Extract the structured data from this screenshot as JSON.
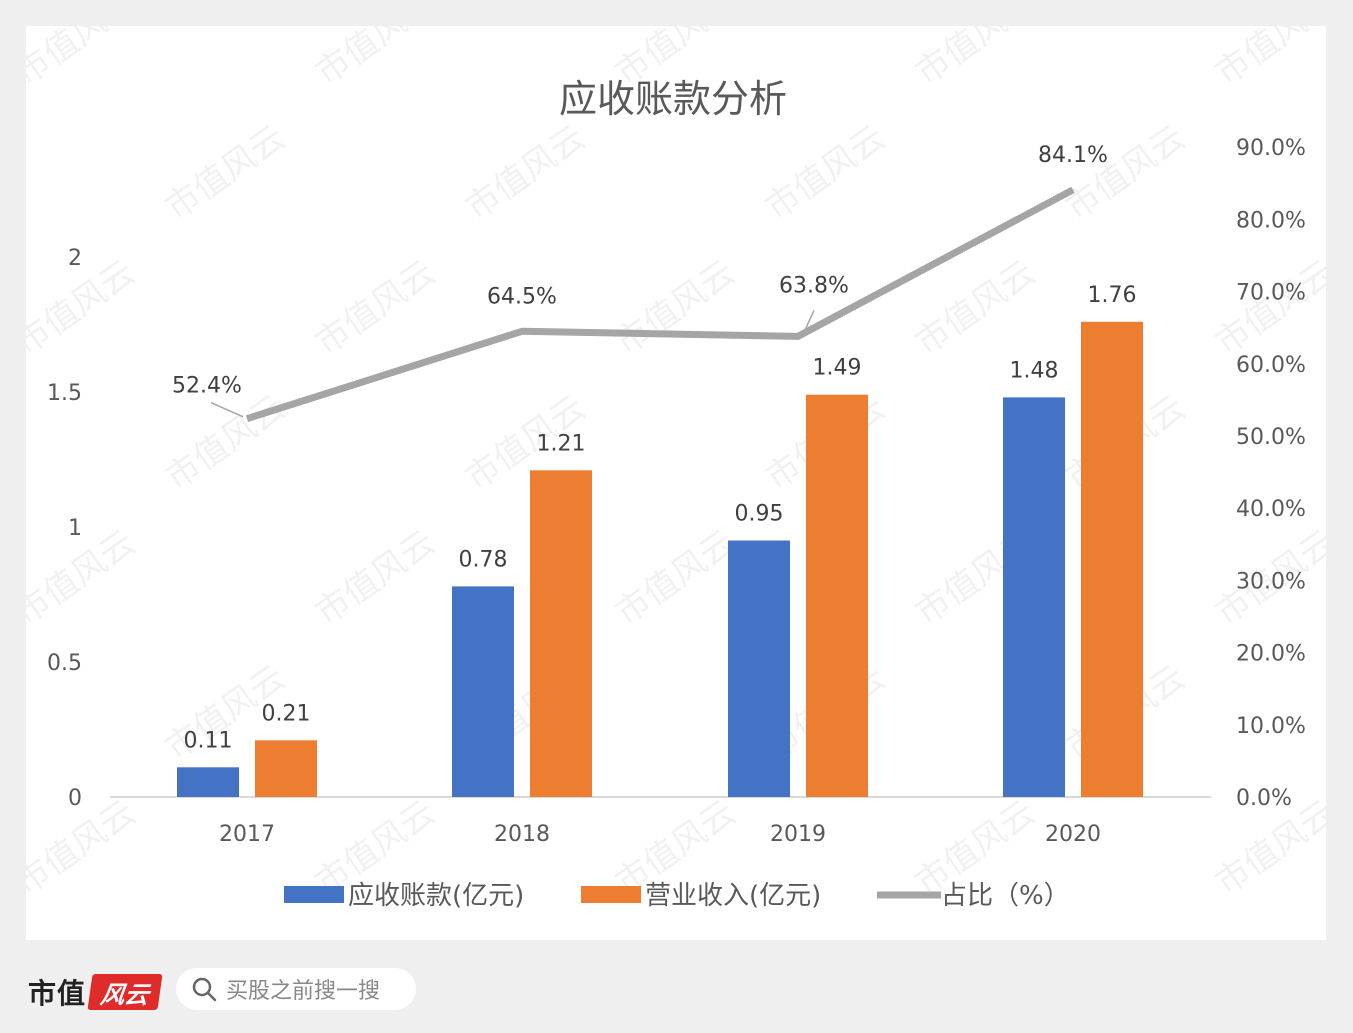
{
  "chart_data": {
    "type": "bar",
    "title": "应收账款分析",
    "categories": [
      "2017",
      "2018",
      "2019",
      "2020"
    ],
    "series": [
      {
        "name": "应收账款(亿元)",
        "type": "bar",
        "axis": "left",
        "color": "#4472c4",
        "values": [
          0.11,
          0.78,
          0.95,
          1.48
        ],
        "labels": [
          "0.11",
          "0.78",
          "0.95",
          "1.48"
        ]
      },
      {
        "name": "营业收入(亿元)",
        "type": "bar",
        "axis": "left",
        "color": "#ed7d31",
        "values": [
          0.21,
          1.21,
          1.49,
          1.76
        ],
        "labels": [
          "0.21",
          "1.21",
          "1.49",
          "1.76"
        ]
      },
      {
        "name": "占比（%）",
        "type": "line",
        "axis": "right",
        "color": "#a5a5a5",
        "values": [
          52.4,
          64.5,
          63.8,
          84.1
        ],
        "labels": [
          "52.4%",
          "64.5%",
          "63.8%",
          "84.1%"
        ]
      }
    ],
    "left_axis": {
      "ticks": [
        "0",
        "0.5",
        "1",
        "1.5",
        "2"
      ],
      "ylim": [
        0,
        2.4
      ]
    },
    "right_axis": {
      "ticks": [
        "0.0%",
        "10.0%",
        "20.0%",
        "30.0%",
        "40.0%",
        "50.0%",
        "60.0%",
        "70.0%",
        "80.0%",
        "90.0%"
      ],
      "ylim": [
        0,
        90
      ]
    },
    "legend_position": "bottom",
    "grid": false
  },
  "watermark": "市值风云",
  "footer": {
    "brand_text": "市值",
    "brand_mark": "风云",
    "search_placeholder": "买股之前搜一搜"
  }
}
